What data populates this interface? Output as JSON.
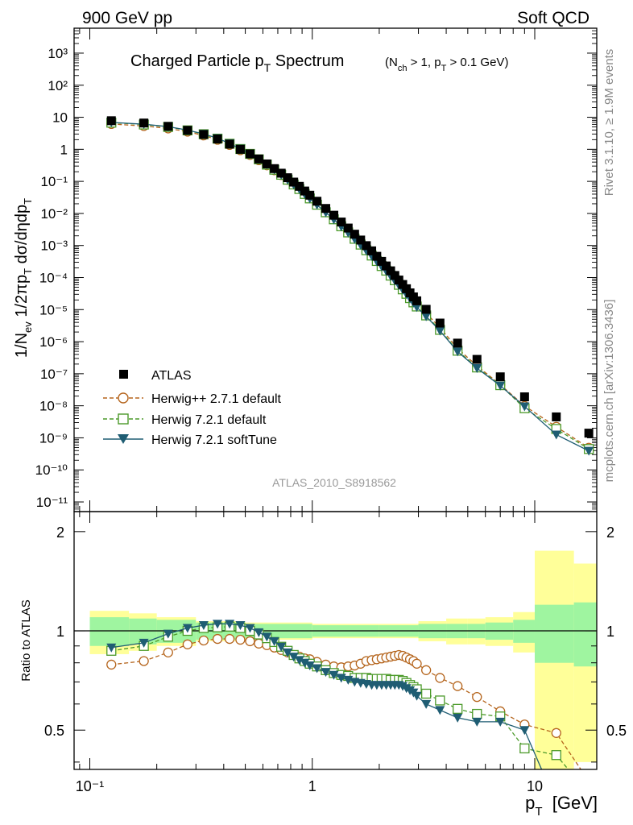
{
  "header": {
    "left": "900 GeV pp",
    "right": "Soft QCD"
  },
  "side_labels": {
    "rivet": "Rivet 3.1.10, ≥ 1.9M events",
    "mcplots": "mcplots.cern.ch [arXiv:1306.3436]"
  },
  "watermark": "ATLAS_2010_S8918562",
  "colors": {
    "atlas": "#000000",
    "herwigpp": "#b5651d",
    "herwig721": "#4c9a2a",
    "softtune": "#1f5d73",
    "band_inner": "#9ff5a0",
    "band_outer": "#ffff99"
  },
  "chart_data": [
    {
      "type": "scatter",
      "title": "Charged Particle pT Spectrum",
      "title_main": "Charged Particle p",
      "title_sub": "T",
      "title_tail": " Spectrum",
      "title_cuts": "(N",
      "title_cuts_parts": [
        "(N",
        "ch",
        " > 1, p",
        "T",
        " > 0.1 GeV)"
      ],
      "ylabel": "1/Nev 1/2πpT dσ/dηdpT",
      "ylabel_parts": [
        "1/N",
        "ev",
        " 1/2πp",
        "T",
        " dσ/dηdp",
        "T"
      ],
      "xscale": "log",
      "yscale": "log",
      "xlim": [
        0.085,
        19
      ],
      "ylim": [
        5e-12,
        6000.0
      ],
      "ytick_labels": [
        "10⁻¹¹",
        "10⁻¹⁰",
        "10⁻⁹",
        "10⁻⁸",
        "10⁻⁷",
        "10⁻⁶",
        "10⁻⁵",
        "10⁻⁴",
        "10⁻³",
        "10⁻²",
        "10⁻¹",
        "1",
        "10",
        "10²",
        "10³"
      ],
      "legend_position": "lower-left",
      "x": [
        0.125,
        0.175,
        0.225,
        0.275,
        0.325,
        0.375,
        0.425,
        0.475,
        0.525,
        0.575,
        0.625,
        0.675,
        0.725,
        0.775,
        0.825,
        0.875,
        0.925,
        0.975,
        1.05,
        1.15,
        1.25,
        1.35,
        1.45,
        1.55,
        1.65,
        1.75,
        1.85,
        1.95,
        2.05,
        2.15,
        2.25,
        2.35,
        2.45,
        2.55,
        2.65,
        2.75,
        2.85,
        2.95,
        3.25,
        3.75,
        4.5,
        5.5,
        7.0,
        9.0,
        12.5,
        17.5
      ],
      "series": [
        {
          "name": "ATLAS",
          "marker": "filled-square",
          "values": [
            7.8,
            6.6,
            5.2,
            3.9,
            2.9,
            2.1,
            1.45,
            1.0,
            0.72,
            0.5,
            0.35,
            0.25,
            0.18,
            0.13,
            0.095,
            0.07,
            0.05,
            0.037,
            0.024,
            0.0143,
            0.0088,
            0.0054,
            0.0035,
            0.00225,
            0.00148,
            0.00099,
            0.00068,
            0.00046,
            0.00032,
            0.00023,
            0.000162,
            0.000116,
            8.36e-05,
            6.07e-05,
            4.48e-05,
            3.33e-05,
            2.49e-05,
            1.88e-05,
            1.02e-05,
            3.8e-06,
            9e-07,
            2.8e-07,
            8e-08,
            1.9e-08,
            4.5e-09,
            1.4e-09
          ]
        },
        {
          "name": "Herwig++ 2.7.1 default",
          "marker": "open-circle",
          "dashed": true,
          "ratio": [
            0.79,
            0.81,
            0.86,
            0.91,
            0.935,
            0.945,
            0.945,
            0.94,
            0.93,
            0.915,
            0.905,
            0.89,
            0.875,
            0.86,
            0.845,
            0.835,
            0.825,
            0.82,
            0.805,
            0.79,
            0.78,
            0.775,
            0.78,
            0.785,
            0.795,
            0.81,
            0.815,
            0.82,
            0.825,
            0.83,
            0.835,
            0.84,
            0.845,
            0.84,
            0.83,
            0.82,
            0.81,
            0.795,
            0.76,
            0.72,
            0.68,
            0.63,
            0.57,
            0.52,
            0.49,
            0.35
          ]
        },
        {
          "name": "Herwig 7.2.1 default",
          "marker": "open-square",
          "dashed": true,
          "ratio": [
            0.87,
            0.9,
            0.96,
            1.0,
            1.02,
            1.025,
            1.03,
            1.02,
            1.0,
            0.975,
            0.95,
            0.925,
            0.895,
            0.87,
            0.845,
            0.825,
            0.81,
            0.795,
            0.78,
            0.76,
            0.745,
            0.735,
            0.73,
            0.72,
            0.72,
            0.72,
            0.715,
            0.715,
            0.715,
            0.715,
            0.71,
            0.71,
            0.71,
            0.705,
            0.695,
            0.685,
            0.675,
            0.665,
            0.645,
            0.615,
            0.58,
            0.56,
            0.55,
            0.44,
            0.42,
            0.32
          ]
        },
        {
          "name": "Herwig 7.2.1 softTune",
          "marker": "filled-triangle-down",
          "dashed": false,
          "ratio": [
            0.89,
            0.92,
            0.98,
            1.02,
            1.04,
            1.05,
            1.05,
            1.04,
            1.02,
            0.99,
            0.96,
            0.93,
            0.895,
            0.86,
            0.835,
            0.815,
            0.8,
            0.785,
            0.77,
            0.75,
            0.735,
            0.72,
            0.71,
            0.7,
            0.695,
            0.69,
            0.685,
            0.685,
            0.685,
            0.685,
            0.685,
            0.685,
            0.685,
            0.68,
            0.67,
            0.66,
            0.65,
            0.635,
            0.6,
            0.575,
            0.545,
            0.53,
            0.53,
            0.5,
            0.28,
            0.28
          ]
        }
      ]
    },
    {
      "type": "line",
      "ylabel": "Ratio to ATLAS",
      "xlabel": "pT [GeV]",
      "xlabel_parts": [
        "p",
        "T",
        "  [GeV]"
      ],
      "xscale": "log",
      "xlim": [
        0.085,
        19
      ],
      "ylim": [
        0.38,
        2.3
      ],
      "ytick_labels": [
        "0.5",
        "1",
        "2"
      ],
      "xtick_labels": [
        "10⁻¹",
        "1",
        "10"
      ],
      "reference": 1,
      "band_edges": [
        0.1,
        0.15,
        0.2,
        0.3,
        0.5,
        1,
        2,
        3,
        4,
        5,
        6,
        8,
        10,
        15,
        19
      ],
      "band_inner": [
        0.1,
        0.09,
        0.08,
        0.06,
        0.05,
        0.04,
        0.04,
        0.05,
        0.05,
        0.05,
        0.06,
        0.08,
        0.2,
        0.22
      ],
      "band_outer": [
        0.15,
        0.13,
        0.1,
        0.07,
        0.06,
        0.05,
        0.05,
        0.07,
        0.09,
        0.09,
        0.1,
        0.14,
        0.75,
        0.6
      ]
    }
  ]
}
